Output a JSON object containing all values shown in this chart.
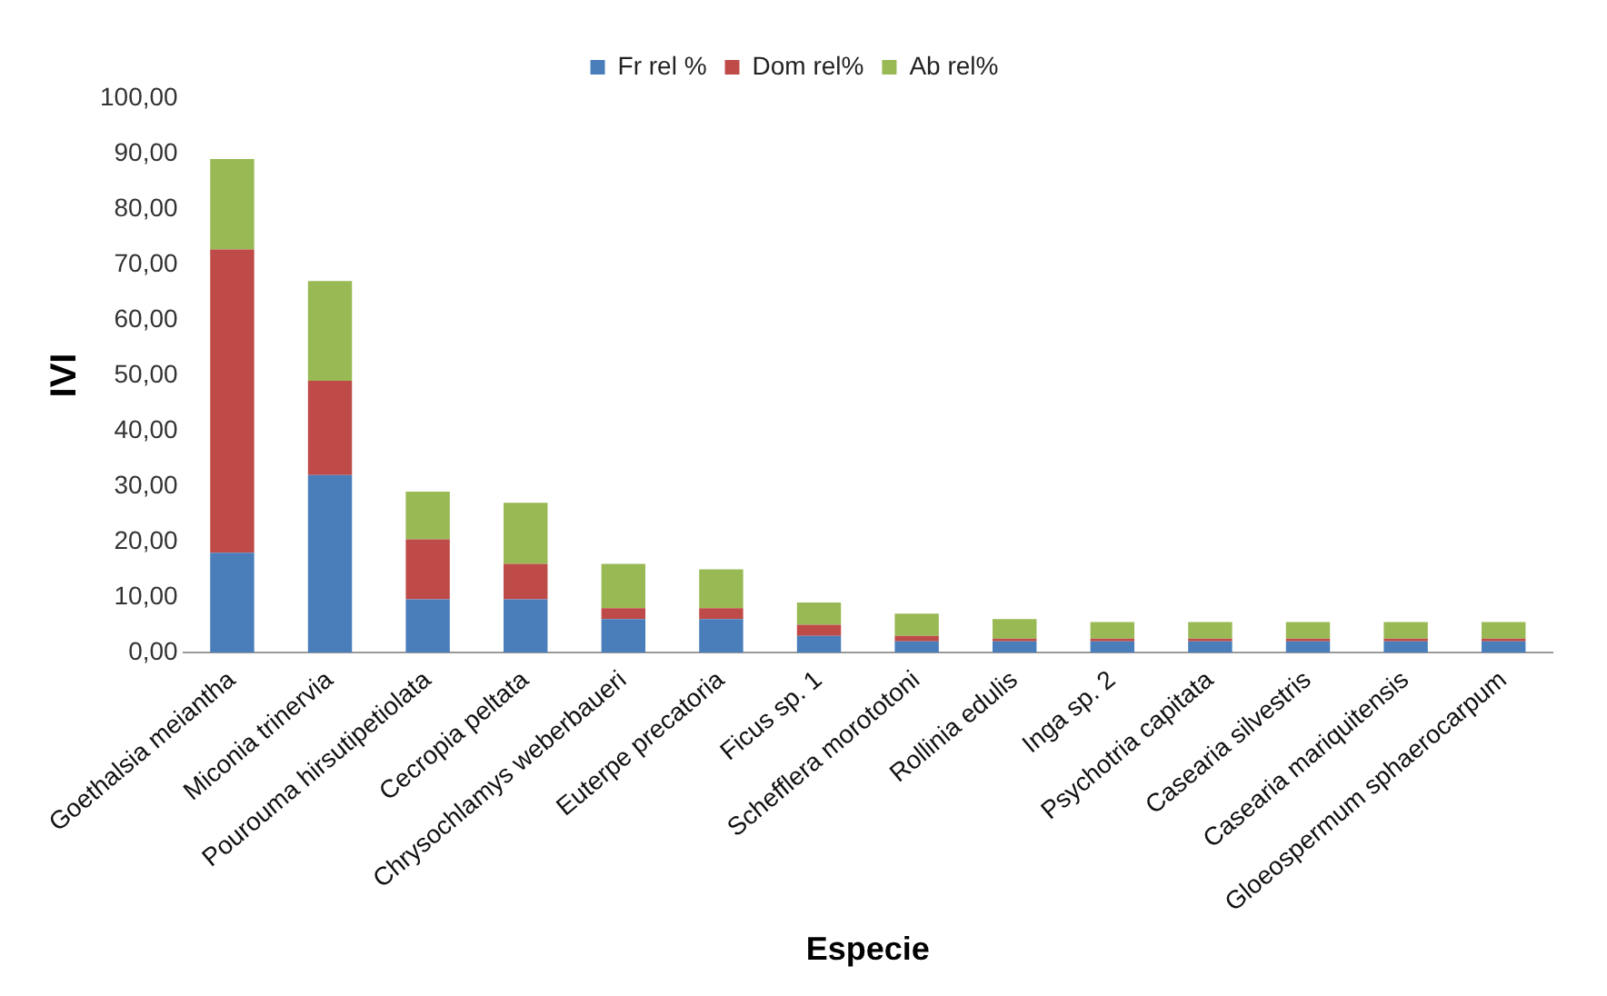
{
  "chart_data": {
    "type": "bar",
    "stacked": true,
    "ylabel": "IVI",
    "xlabel": "Especie",
    "categories": [
      "Goethalsia meiantha",
      "Miconia trinervia",
      "Pourouma hirsutipetiolata",
      "Cecropia peltata",
      "Chrysochlamys weberbaueri",
      "Euterpe precatoria",
      "Ficus sp. 1",
      "Schefflera morototoni",
      "Rollinia edulis",
      "Inga sp. 2",
      "Psychotria capitata",
      "Casearia silvestris",
      "Casearia mariquitensis",
      "Gloeospermum sphaerocarpum"
    ],
    "series": [
      {
        "name": "Fr rel %",
        "color": "#4a7ebb",
        "values": [
          18,
          32,
          9.6,
          9.6,
          6,
          6,
          3,
          2,
          2,
          2,
          2,
          2,
          2,
          2
        ]
      },
      {
        "name": "Dom rel%",
        "color": "#be4b48",
        "values": [
          54.7,
          17,
          10.8,
          6.4,
          2,
          2,
          2,
          1,
          0.5,
          0.5,
          0.5,
          0.5,
          0.5,
          0.5
        ]
      },
      {
        "name": "Ab rel%",
        "color": "#98b954",
        "values": [
          16.3,
          18,
          8.6,
          11,
          8,
          7,
          4,
          4,
          3.5,
          3,
          3,
          3,
          3,
          3
        ]
      }
    ],
    "ylim": [
      0,
      100
    ],
    "yticks": [
      {
        "value": 0,
        "label": "0,00"
      },
      {
        "value": 10,
        "label": "10,00"
      },
      {
        "value": 20,
        "label": "20,00"
      },
      {
        "value": 30,
        "label": "30,00"
      },
      {
        "value": 40,
        "label": "40,00"
      },
      {
        "value": 50,
        "label": "50,00"
      },
      {
        "value": 60,
        "label": "60,00"
      },
      {
        "value": 70,
        "label": "70,00"
      },
      {
        "value": 80,
        "label": "80,00"
      },
      {
        "value": 90,
        "label": "90,00"
      },
      {
        "value": 100,
        "label": "100,00"
      }
    ],
    "grid": false,
    "legend": "top"
  }
}
